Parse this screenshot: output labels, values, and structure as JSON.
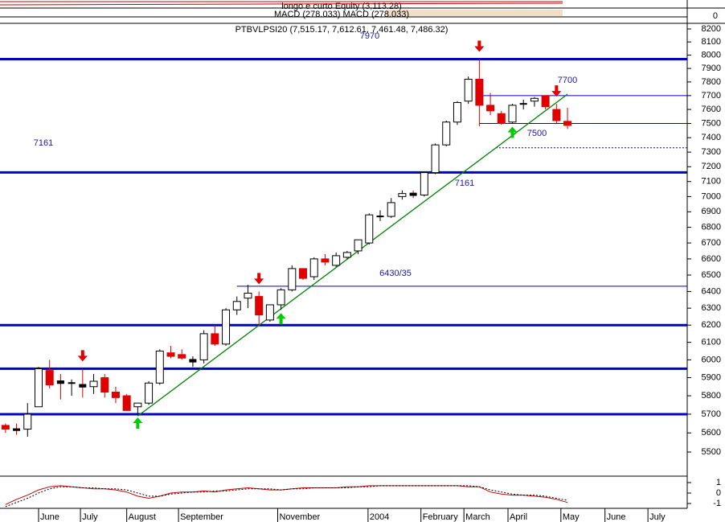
{
  "chart_data": {
    "type": "candlestick",
    "titles": [
      "longo e curto Equity (3,113.28)",
      "MACD (278.033) MACD (278.033)",
      "PTBVLPSI20 (7,515.17, 7,612.61, 7,461.48, 7,486.32)"
    ],
    "equity_zero": 0,
    "log_scale": true,
    "xlim": [
      -0.5,
      61.5
    ],
    "xticks": [
      {
        "value": 3,
        "label": "June"
      },
      {
        "value": 6.8,
        "label": "July"
      },
      {
        "value": 11,
        "label": "August"
      },
      {
        "value": 15.7,
        "label": "September"
      },
      {
        "value": 24.7,
        "label": "November"
      },
      {
        "value": 32.9,
        "label": "2004"
      },
      {
        "value": 37.7,
        "label": "February"
      },
      {
        "value": 41.6,
        "label": "March"
      },
      {
        "value": 45.6,
        "label": "April"
      },
      {
        "value": 50.4,
        "label": "May"
      },
      {
        "value": 54.4,
        "label": "June"
      },
      {
        "value": 58.3,
        "label": "July"
      }
    ],
    "ylim": [
      5500,
      8200
    ],
    "yticks": [
      5500,
      5600,
      5700,
      5800,
      5900,
      6000,
      6100,
      6200,
      6300,
      6400,
      6500,
      6600,
      6700,
      6800,
      6900,
      7000,
      7100,
      7200,
      7300,
      7400,
      7500,
      7600,
      7700,
      7800,
      7900,
      8000,
      8100,
      8200
    ],
    "open": [
      5640,
      5620,
      5620,
      5740,
      5940,
      5880,
      5870,
      5860,
      5850,
      5900,
      5820,
      5800,
      5740,
      5760,
      5870,
      6040,
      6030,
      5990,
      6000,
      6150,
      6090,
      6290,
      6360,
      6370,
      6230,
      6320,
      6410,
      6540,
      6490,
      6600,
      6560,
      6610,
      6650,
      6700,
      6870,
      6870,
      7000,
      7020,
      7010,
      7160,
      7350,
      7510,
      7660,
      7820,
      7630,
      7570,
      7510,
      7640,
      7660,
      7700,
      7600,
      7515.17
    ],
    "high": [
      5650,
      5650,
      5760,
      5960,
      6000,
      5920,
      5890,
      5950,
      5920,
      5920,
      5850,
      5810,
      5760,
      5880,
      6060,
      6080,
      6060,
      6020,
      6170,
      6200,
      6300,
      6370,
      6440,
      6400,
      6320,
      6420,
      6560,
      6540,
      6610,
      6630,
      6640,
      6650,
      6720,
      6890,
      6910,
      6990,
      7040,
      7040,
      7160,
      7360,
      7520,
      7660,
      7840,
      7970,
      7720,
      7590,
      7640,
      7670,
      7690,
      7700,
      7640,
      7612.61
    ],
    "low": [
      5600,
      5590,
      5580,
      5740,
      5840,
      5780,
      5800,
      5790,
      5810,
      5790,
      5760,
      5720,
      5700,
      5750,
      5860,
      6010,
      6000,
      5960,
      5980,
      6080,
      6080,
      6260,
      6300,
      6200,
      6220,
      6290,
      6400,
      6470,
      6470,
      6560,
      6550,
      6600,
      6630,
      6690,
      6840,
      6860,
      6980,
      6990,
      7000,
      7150,
      7340,
      7490,
      7640,
      7480,
      7560,
      7490,
      7500,
      7600,
      7620,
      7600,
      7500,
      7461.48
    ],
    "close": [
      5620,
      5615,
      5700,
      5950,
      5860,
      5870,
      5870,
      5850,
      5880,
      5820,
      5790,
      5720,
      5760,
      5870,
      6050,
      6020,
      6010,
      6000,
      6150,
      6090,
      6290,
      6340,
      6390,
      6260,
      6320,
      6410,
      6540,
      6480,
      6600,
      6580,
      6620,
      6640,
      6720,
      6880,
      6870,
      6960,
      7020,
      7010,
      7160,
      7350,
      7510,
      7650,
      7820,
      7630,
      7590,
      7500,
      7630,
      7640,
      7680,
      7620,
      7520,
      7486.32
    ],
    "up_color": "#ffffff",
    "down_color": "#e00000",
    "doji_color": "#000000",
    "levels": [
      {
        "value": 7970,
        "style": "thick",
        "from": -0.5
      },
      {
        "value": 7161,
        "style": "thick",
        "from": -0.5
      },
      {
        "value": 6200,
        "style": "thick",
        "from": -0.5
      },
      {
        "value": 5950,
        "style": "thick",
        "from": -0.5
      },
      {
        "value": 5700,
        "style": "thick",
        "from": -0.5
      },
      {
        "value": 7700,
        "style": "thin",
        "from": 43
      },
      {
        "value": 7500,
        "style": "thin",
        "from": 43
      },
      {
        "value": 6432,
        "style": "thin",
        "from": 21
      },
      {
        "value": 7330,
        "style": "dashed",
        "from": 44.5
      }
    ],
    "level_color": "#0000cc",
    "annotations": [
      "7970",
      "7161",
      "7161",
      "7700",
      "7500",
      "6430/35"
    ],
    "trend": {
      "x": [
        12,
        51
      ],
      "y": [
        5690,
        7710
      ],
      "color": "#008000"
    },
    "sell_signals": [
      7,
      23,
      43,
      50
    ],
    "buy_signals": [
      12,
      25,
      46
    ],
    "sell_color": "#e00000",
    "buy_color": "#00cc00",
    "macd_ylim": [
      -1.3,
      1.3
    ],
    "macd_yticks": [
      1,
      0,
      -1
    ],
    "macd": [
      {
        "color": "#cc0000",
        "dash": false,
        "values": [
          -1.1,
          -0.6,
          -0.2,
          0.3,
          0.6,
          0.7,
          0.6,
          0.5,
          0.4,
          0.4,
          0.3,
          0.1,
          -0.3,
          -0.5,
          -0.3,
          0,
          0.1,
          0.1,
          0.2,
          0.1,
          0.3,
          0.4,
          0.5,
          0.4,
          0.3,
          0.3,
          0.4,
          0.5,
          0.5,
          0.5,
          0.5,
          0.6,
          0.6,
          0.7,
          0.7,
          0.7,
          0.7,
          0.7,
          0.7,
          0.7,
          0.7,
          0.7,
          0.6,
          0.6,
          0.1,
          -0.1,
          -0.2,
          -0.2,
          -0.3,
          -0.4,
          -0.6,
          -0.9
        ]
      },
      {
        "color": "#000000",
        "dash": true,
        "values": [
          -1.3,
          -0.9,
          -0.5,
          0,
          0.4,
          0.6,
          0.6,
          0.5,
          0.5,
          0.4,
          0.4,
          0.3,
          0,
          -0.3,
          -0.3,
          -0.1,
          0,
          0.1,
          0.1,
          0.2,
          0.2,
          0.3,
          0.4,
          0.4,
          0.4,
          0.3,
          0.4,
          0.4,
          0.5,
          0.5,
          0.5,
          0.5,
          0.6,
          0.6,
          0.7,
          0.7,
          0.7,
          0.7,
          0.7,
          0.7,
          0.7,
          0.7,
          0.7,
          0.6,
          0.3,
          0.1,
          -0.1,
          -0.2,
          -0.2,
          -0.3,
          -0.5,
          -0.7
        ]
      }
    ]
  }
}
